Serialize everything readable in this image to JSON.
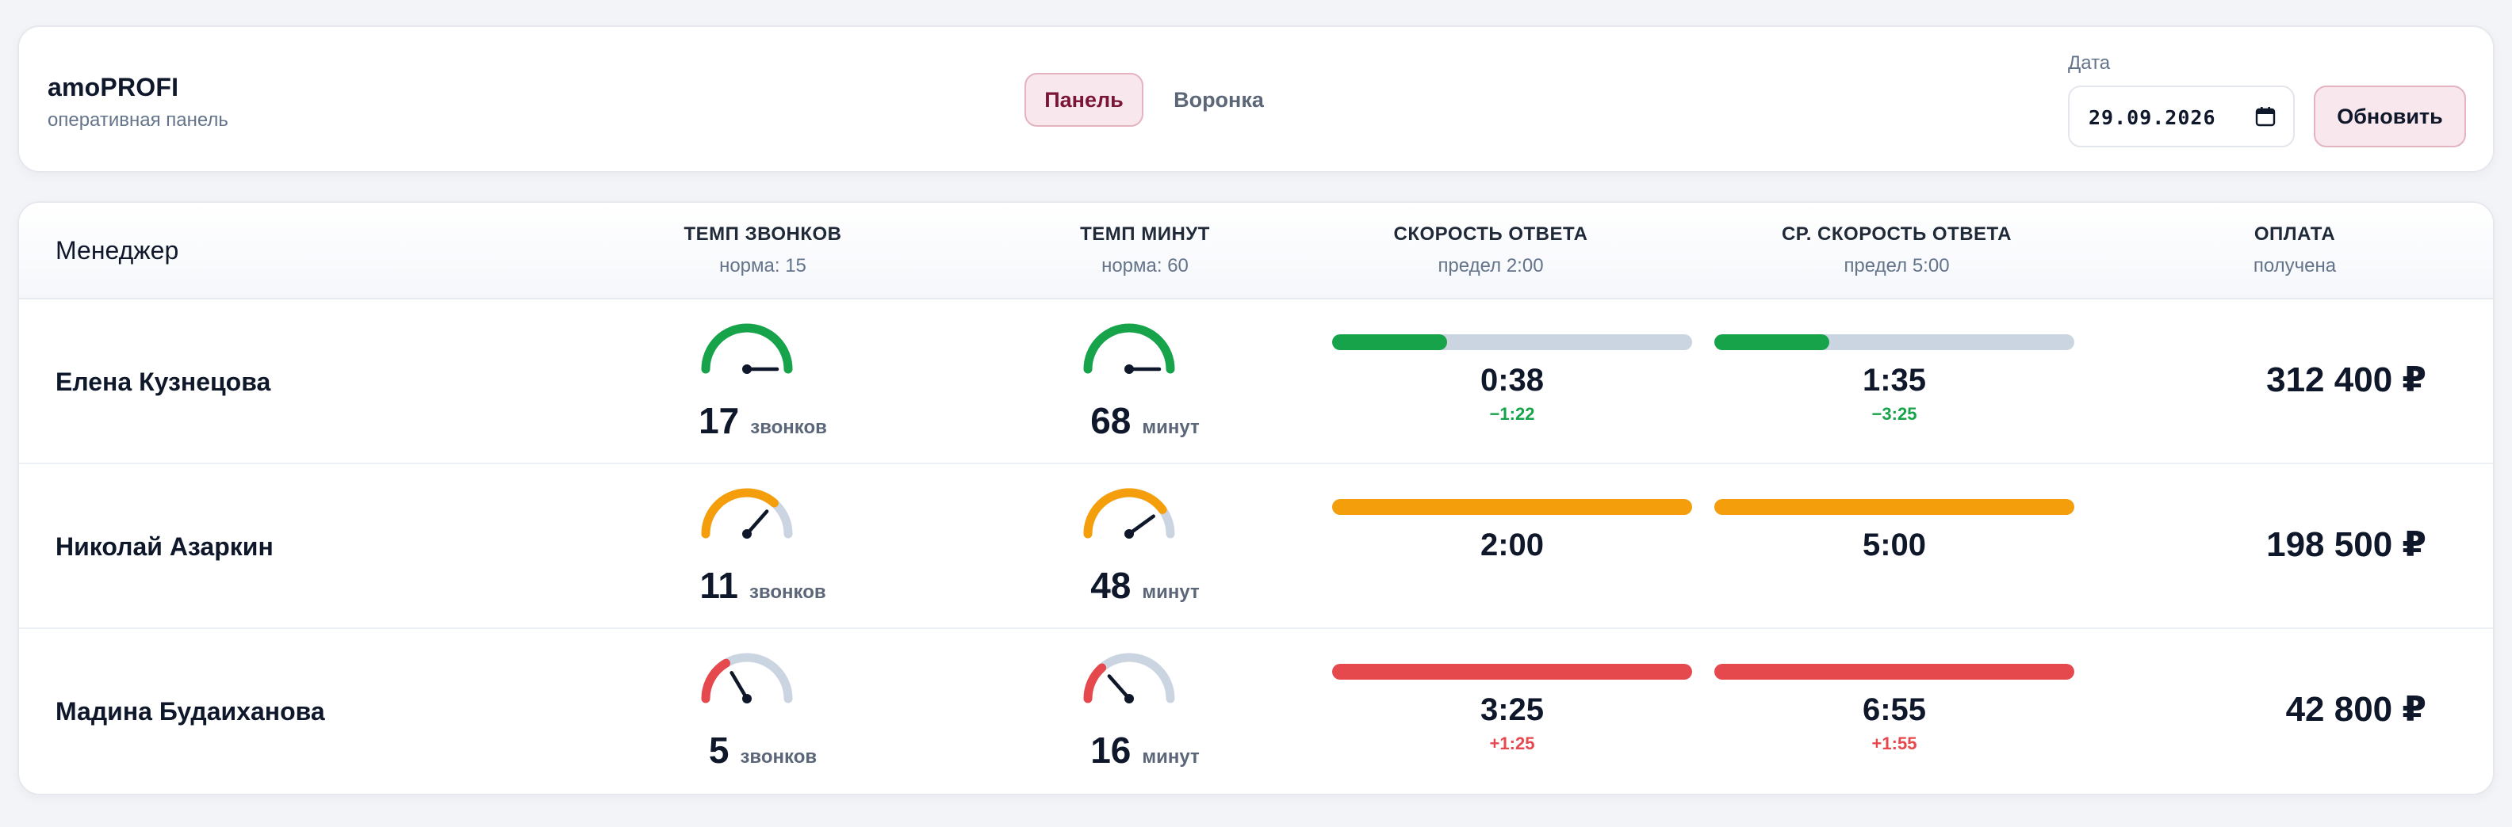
{
  "header": {
    "app_title": "amoPROFI",
    "app_subtitle": "оперативная панель",
    "tabs": [
      {
        "label": "Панель",
        "active": true
      },
      {
        "label": "Воронка",
        "active": false
      }
    ],
    "date_label": "Дата",
    "date_value": "29.09.2026",
    "refresh_label": "Обновить"
  },
  "table": {
    "columns": {
      "manager": "Менеджер",
      "calls": {
        "title": "ТЕМП ЗВОНКОВ",
        "sub": "норма: 15"
      },
      "minutes": {
        "title": "ТЕМП МИНУТ",
        "sub": "норма: 60"
      },
      "response": {
        "title": "СКОРОСТЬ ОТВЕТА",
        "sub": "предел 2:00"
      },
      "avg_response": {
        "title": "СР. СКОРОСТЬ ОТВЕТА",
        "sub": "предел 5:00"
      },
      "payment": {
        "title": "ОПЛАТА",
        "sub": "получена"
      }
    },
    "units": {
      "calls": "звонков",
      "minutes": "минут"
    },
    "rows": [
      {
        "name": "Елена Кузнецова",
        "calls": "17",
        "calls_level": 1.0,
        "calls_color": "#16a34a",
        "minutes": "68",
        "minutes_level": 1.0,
        "minutes_color": "#16a34a",
        "response": "0:38",
        "response_delta": "−1:22",
        "response_fill": 0.32,
        "response_color": "#16a34a",
        "avg_response": "1:35",
        "avg_response_delta": "−3:25",
        "avg_response_fill": 0.32,
        "avg_response_color": "#16a34a",
        "payment": "312 400 ₽"
      },
      {
        "name": "Николай Азаркин",
        "calls": "11",
        "calls_level": 0.73,
        "calls_color": "#f59e0b",
        "minutes": "48",
        "minutes_level": 0.8,
        "minutes_color": "#f59e0b",
        "response": "2:00",
        "response_delta": "",
        "response_fill": 1.0,
        "response_color": "#f59e0b",
        "avg_response": "5:00",
        "avg_response_delta": "",
        "avg_response_fill": 1.0,
        "avg_response_color": "#f59e0b",
        "payment": "198 500 ₽"
      },
      {
        "name": "Мадина Будаиханова",
        "calls": "5",
        "calls_level": 0.33,
        "calls_color": "#e5484d",
        "minutes": "16",
        "minutes_level": 0.27,
        "minutes_color": "#e5484d",
        "response": "3:25",
        "response_delta": "+1:25",
        "response_fill": 1.0,
        "response_color": "#e5484d",
        "avg_response": "6:55",
        "avg_response_delta": "+1:55",
        "avg_response_fill": 1.0,
        "avg_response_color": "#e5484d",
        "payment": "42 800 ₽"
      }
    ]
  }
}
